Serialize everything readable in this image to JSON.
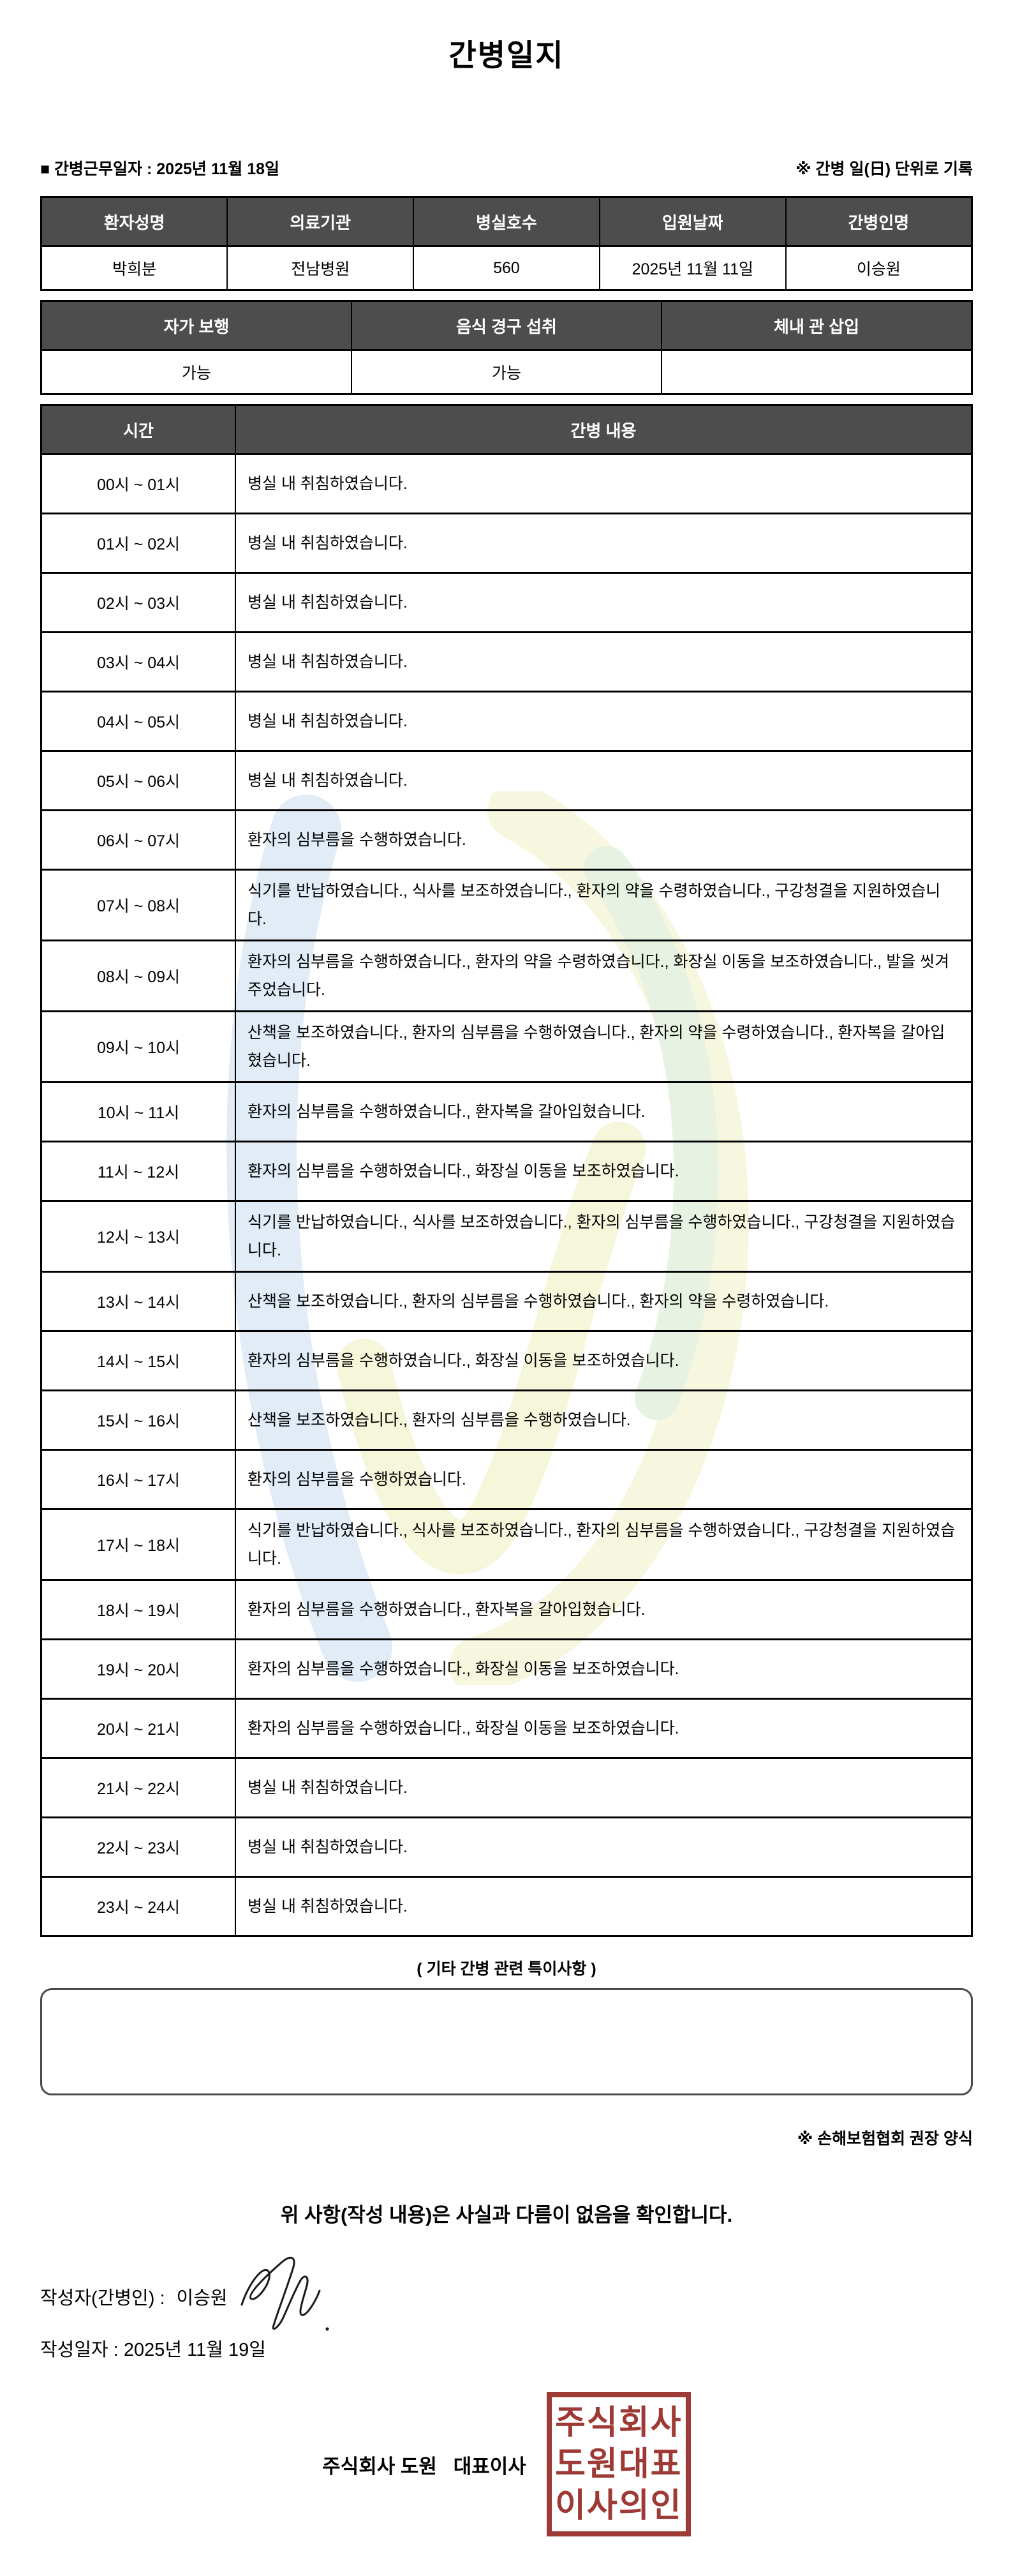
{
  "title": "간병일지",
  "meta": {
    "work_date": "■ 간병근무일자 : 2025년 11월 18일",
    "unit_note": "※ 간병 일(日) 단위로 기록"
  },
  "patient_table": {
    "headers": [
      "환자성명",
      "의료기관",
      "병실호수",
      "입원날짜",
      "간병인명"
    ],
    "values": [
      "박희분",
      "전남병원",
      "560",
      "2025년 11월 11일",
      "이승원"
    ]
  },
  "status_table": {
    "headers": [
      "자가 보행",
      "음식 경구 섭취",
      "체내 관 삽입"
    ],
    "values": [
      "가능",
      "가능",
      ""
    ]
  },
  "care_log": {
    "headers": [
      "시간",
      "간병 내용"
    ],
    "rows": [
      {
        "time": "00시 ~ 01시",
        "content": "병실 내 취침하였습니다."
      },
      {
        "time": "01시 ~ 02시",
        "content": "병실 내 취침하였습니다."
      },
      {
        "time": "02시 ~ 03시",
        "content": "병실 내 취침하였습니다."
      },
      {
        "time": "03시 ~ 04시",
        "content": "병실 내 취침하였습니다."
      },
      {
        "time": "04시 ~ 05시",
        "content": "병실 내 취침하였습니다."
      },
      {
        "time": "05시 ~ 06시",
        "content": "병실 내 취침하였습니다."
      },
      {
        "time": "06시 ~ 07시",
        "content": "환자의 심부름을 수행하였습니다."
      },
      {
        "time": "07시 ~ 08시",
        "content": "식기를 반납하였습니다., 식사를 보조하였습니다., 환자의 약을 수령하였습니다., 구강청결을 지원하였습니다."
      },
      {
        "time": "08시 ~ 09시",
        "content": "환자의 심부름을 수행하였습니다., 환자의 약을 수령하였습니다., 화장실 이동을 보조하였습니다., 발을 씻겨주었습니다."
      },
      {
        "time": "09시 ~ 10시",
        "content": "산책을 보조하였습니다., 환자의 심부름을 수행하였습니다., 환자의 약을 수령하였습니다., 환자복을 갈아입혔습니다."
      },
      {
        "time": "10시 ~ 11시",
        "content": "환자의 심부름을 수행하였습니다., 환자복을 갈아입혔습니다."
      },
      {
        "time": "11시 ~ 12시",
        "content": "환자의 심부름을 수행하였습니다., 화장실 이동을 보조하였습니다."
      },
      {
        "time": "12시 ~ 13시",
        "content": "식기를 반납하였습니다., 식사를 보조하였습니다., 환자의 심부름을 수행하였습니다., 구강청결을 지원하였습니다."
      },
      {
        "time": "13시 ~ 14시",
        "content": "산책을 보조하였습니다., 환자의 심부름을 수행하였습니다., 환자의 약을 수령하였습니다."
      },
      {
        "time": "14시 ~ 15시",
        "content": "환자의 심부름을 수행하였습니다., 화장실 이동을 보조하였습니다."
      },
      {
        "time": "15시 ~ 16시",
        "content": "산책을 보조하였습니다., 환자의 심부름을 수행하였습니다."
      },
      {
        "time": "16시 ~ 17시",
        "content": "환자의 심부름을 수행하였습니다."
      },
      {
        "time": "17시 ~ 18시",
        "content": "식기를 반납하였습니다., 식사를 보조하였습니다., 환자의 심부름을 수행하였습니다., 구강청결을 지원하였습니다."
      },
      {
        "time": "18시 ~ 19시",
        "content": "환자의 심부름을 수행하였습니다., 환자복을 갈아입혔습니다."
      },
      {
        "time": "19시 ~ 20시",
        "content": "환자의 심부름을 수행하였습니다., 화장실 이동을 보조하였습니다."
      },
      {
        "time": "20시 ~ 21시",
        "content": "환자의 심부름을 수행하였습니다., 화장실 이동을 보조하였습니다."
      },
      {
        "time": "21시 ~ 22시",
        "content": "병실 내 취침하였습니다."
      },
      {
        "time": "22시 ~ 23시",
        "content": "병실 내 취침하였습니다."
      },
      {
        "time": "23시 ~ 24시",
        "content": "병실 내 취침하였습니다."
      }
    ]
  },
  "notes": {
    "title": "( 기타 간병 관련 특이사항 )",
    "content": "",
    "form_note": "※ 손해보험협회 권장 양식"
  },
  "footer": {
    "confirmation": "위 사항(작성 내용)은 사실과 다름이 없음을 확인합니다.",
    "writer_label": "작성자(간병인) :",
    "writer_name": "이승원",
    "date_line": "작성일자 :  2025년 11월 19일",
    "company": "주식회사 도원   대표이사",
    "stamp_lines": [
      "주식회사",
      "도원대표",
      "이사의인"
    ]
  },
  "colors": {
    "header_bg": "#4d4d4d",
    "stamp_red": "#9e3a36",
    "watermark_blue": "#c9def1",
    "watermark_yellow": "#f1f2c6",
    "watermark_green": "#d7e9cc"
  }
}
